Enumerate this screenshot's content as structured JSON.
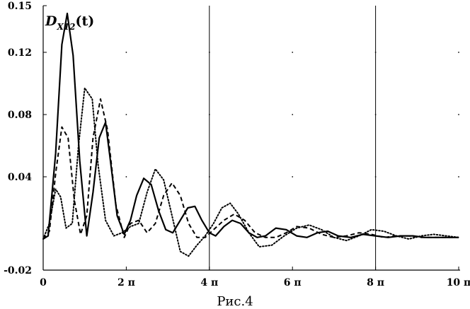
{
  "chart_data": {
    "type": "line",
    "title": "",
    "caption": "Рис.4",
    "xlabel": "",
    "ylabel": {
      "base": "D",
      "sub": "X12",
      "tail": "(t)"
    },
    "xlim": [
      0,
      10
    ],
    "x_unit": "π",
    "ylim": [
      -0.02,
      0.15
    ],
    "x_ticks": [
      {
        "value": 0,
        "label": "0"
      },
      {
        "value": 2,
        "label": "2 π"
      },
      {
        "value": 4,
        "label": "4 π"
      },
      {
        "value": 6,
        "label": "6 π"
      },
      {
        "value": 8,
        "label": "8 π"
      },
      {
        "value": 10,
        "label": "10 π"
      }
    ],
    "y_ticks": [
      {
        "value": 0.15,
        "label": "0.15"
      },
      {
        "value": 0.12,
        "label": "0.12"
      },
      {
        "value": 0.08,
        "label": "0.08"
      },
      {
        "value": 0.04,
        "label": "0.04"
      },
      {
        "value": -0.02,
        "label": "-0.02"
      }
    ],
    "grid": {
      "vertical_at": [
        4,
        8
      ],
      "dotted_points_at_y": [
        0.12,
        0.08,
        0.04
      ]
    },
    "series": [
      {
        "style": "solid",
        "color": "#000000",
        "x": [
          0,
          0.12,
          0.3,
          0.45,
          0.58,
          0.72,
          0.88,
          1.05,
          1.2,
          1.35,
          1.5,
          1.62,
          1.78,
          1.95,
          2.1,
          2.25,
          2.42,
          2.6,
          2.78,
          2.95,
          3.12,
          3.3,
          3.48,
          3.65,
          3.82,
          4.0,
          4.15,
          4.35,
          4.55,
          4.75,
          4.95,
          5.15,
          5.35,
          5.6,
          5.85,
          6.1,
          6.35,
          6.6,
          6.85,
          7.1,
          7.4,
          7.7,
          8.0,
          8.3,
          8.6,
          8.9,
          9.2,
          9.5,
          9.8,
          10.0
        ],
        "y": [
          0,
          0.002,
          0.055,
          0.125,
          0.145,
          0.118,
          0.05,
          0.002,
          0.03,
          0.065,
          0.075,
          0.05,
          0.015,
          0.003,
          0.012,
          0.028,
          0.039,
          0.035,
          0.018,
          0.006,
          0.004,
          0.012,
          0.02,
          0.021,
          0.012,
          0.004,
          0.002,
          0.008,
          0.012,
          0.01,
          0.004,
          0.001,
          0.002,
          0.007,
          0.006,
          0.002,
          0.001,
          0.004,
          0.005,
          0.002,
          0.001,
          0.003,
          0.002,
          0.001,
          0.002,
          0.002,
          0.001,
          0.001,
          0.001,
          0.001
        ]
      },
      {
        "style": "dashed",
        "color": "#000000",
        "x": [
          0,
          0.15,
          0.3,
          0.45,
          0.6,
          0.75,
          0.9,
          1.05,
          1.2,
          1.38,
          1.55,
          1.75,
          1.95,
          2.1,
          2.3,
          2.5,
          2.7,
          2.9,
          3.1,
          3.3,
          3.5,
          3.7,
          3.9,
          4.1,
          4.35,
          4.6,
          4.85,
          5.1,
          5.35,
          5.6,
          5.85,
          6.1,
          6.4,
          6.7,
          7.0,
          7.3,
          7.6,
          7.9,
          8.2,
          8.5,
          8.8,
          9.1,
          9.4,
          9.7,
          10.0
        ],
        "y": [
          0,
          0.005,
          0.042,
          0.072,
          0.065,
          0.025,
          0.003,
          0.015,
          0.065,
          0.09,
          0.07,
          0.022,
          0.001,
          0.01,
          0.012,
          0.004,
          0.01,
          0.028,
          0.036,
          0.028,
          0.01,
          0.001,
          0.001,
          0.006,
          0.012,
          0.016,
          0.012,
          0.004,
          0.001,
          0.001,
          0.004,
          0.008,
          0.007,
          0.003,
          0.001,
          0.002,
          0.004,
          0.003,
          0.001,
          0.002,
          0.002,
          0.001,
          0.001,
          0.001,
          0.001
        ]
      },
      {
        "style": "dotted",
        "color": "#000000",
        "x": [
          0,
          0.15,
          0.3,
          0.42,
          0.55,
          0.7,
          0.85,
          1.0,
          1.18,
          1.32,
          1.5,
          1.7,
          1.9,
          2.1,
          2.3,
          2.5,
          2.7,
          2.9,
          3.1,
          3.3,
          3.5,
          3.7,
          3.9,
          4.1,
          4.3,
          4.5,
          4.7,
          4.95,
          5.2,
          5.5,
          5.8,
          6.1,
          6.4,
          6.7,
          7.0,
          7.3,
          7.6,
          7.9,
          8.2,
          8.5,
          8.8,
          9.1,
          9.4,
          9.7,
          10.0
        ],
        "y": [
          0,
          0.01,
          0.032,
          0.027,
          0.007,
          0.01,
          0.06,
          0.097,
          0.09,
          0.048,
          0.012,
          0.002,
          0.004,
          0.008,
          0.01,
          0.03,
          0.045,
          0.038,
          0.015,
          -0.008,
          -0.011,
          -0.004,
          0.002,
          0.01,
          0.02,
          0.023,
          0.016,
          0.004,
          -0.005,
          -0.004,
          0.002,
          0.007,
          0.009,
          0.006,
          0.001,
          -0.001,
          0.002,
          0.006,
          0.005,
          0.002,
          0.0,
          0.002,
          0.003,
          0.002,
          0.001
        ]
      }
    ]
  }
}
